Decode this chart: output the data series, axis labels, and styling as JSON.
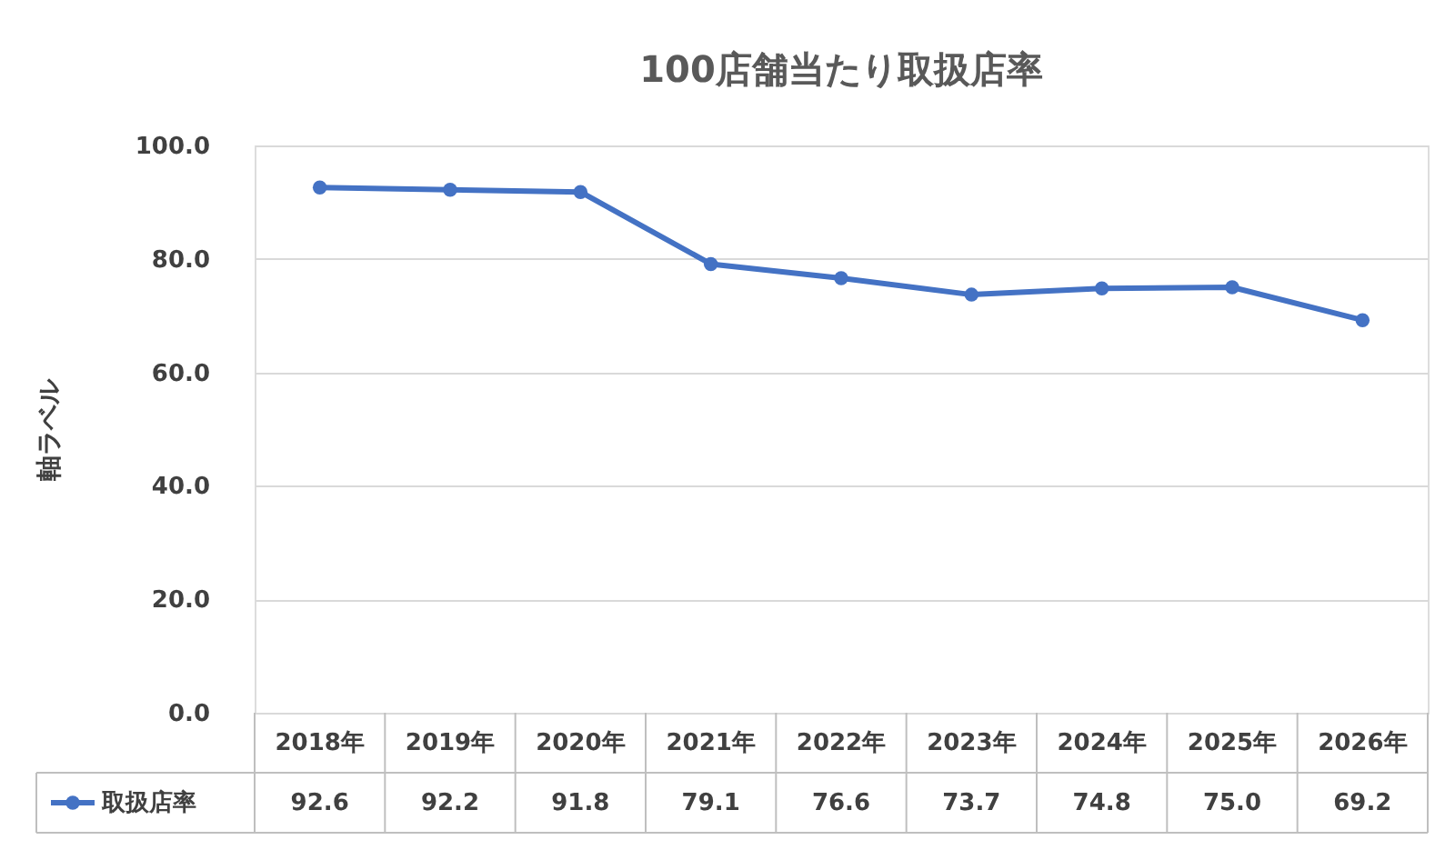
{
  "chart_data": {
    "type": "line",
    "title": "100店舗当たり取扱店率",
    "ylabel": "軸ラベル",
    "categories": [
      "2018年",
      "2019年",
      "2020年",
      "2021年",
      "2022年",
      "2023年",
      "2024年",
      "2025年",
      "2026年"
    ],
    "series": [
      {
        "name": "取扱店率",
        "color": "#4472c4",
        "values": [
          92.6,
          92.2,
          91.8,
          79.1,
          76.6,
          73.7,
          74.8,
          75.0,
          69.2
        ],
        "value_labels": [
          "92.6",
          "92.2",
          "91.8",
          "79.1",
          "76.6",
          "73.7",
          "74.8",
          "75.0",
          "69.2"
        ]
      }
    ],
    "ylim": [
      0,
      100
    ],
    "yticks": [
      {
        "value": 0,
        "label": "0.0"
      },
      {
        "value": 20,
        "label": "20.0"
      },
      {
        "value": 40,
        "label": "40.0"
      },
      {
        "value": 60,
        "label": "60.0"
      },
      {
        "value": 80,
        "label": "80.0"
      },
      {
        "value": 100,
        "label": "100.0"
      }
    ],
    "grid": "y",
    "marker": "circle",
    "line_style": "solid",
    "legend": "bottom left"
  }
}
